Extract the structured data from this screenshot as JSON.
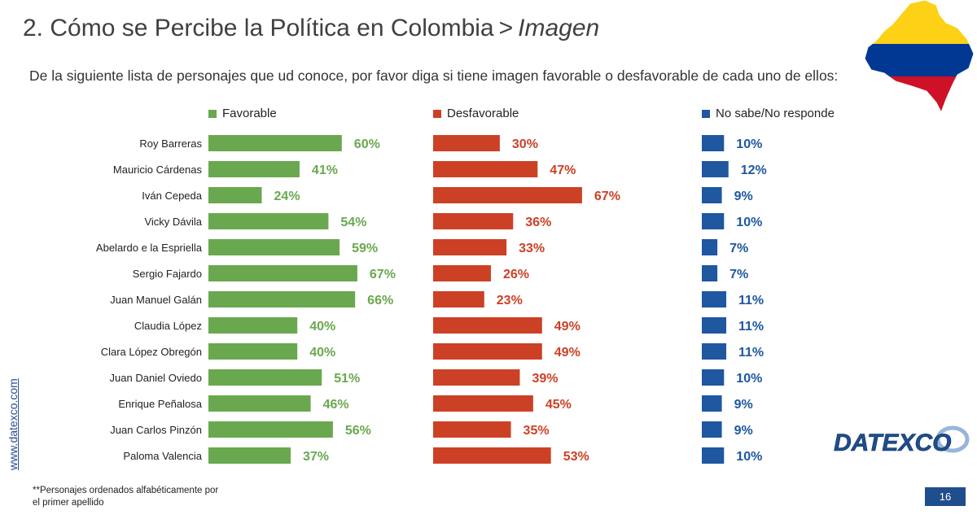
{
  "header": {
    "title_main": "2. Cómo se Percibe la Política en Colombia",
    "title_sep": ">",
    "title_crumb": "Imagen",
    "subtitle": "De la siguiente lista de personajes que ud conoce, por favor diga si tiene imagen favorable o desfavorable de cada uno de ellos:"
  },
  "footer": {
    "website": "www.datexco.com",
    "footnote": "**Personajes ordenados alfabéticamente por el primer apellido",
    "page_number": "16",
    "logo_text": "DATEXCO"
  },
  "colors": {
    "favorable": "#6aa84f",
    "desfavorable": "#cc4125",
    "ns_nr": "#1f57a0",
    "logo_blue": "#1f4e8c"
  },
  "chart_data": {
    "type": "bar",
    "orientation": "horizontal",
    "categories": [
      "Roy Barreras",
      "Mauricio Cárdenas",
      "Iván Cepeda",
      "Vicky Dávila",
      "Abelardo e la Espriella",
      "Sergio Fajardo",
      "Juan Manuel Galán",
      "Claudia López",
      "Clara López Obregón",
      "Juan Daniel Oviedo",
      "Enrique Peñalosa",
      "Juan Carlos Pinzón",
      "Paloma Valencia"
    ],
    "series": [
      {
        "name": "Favorable",
        "values": [
          60,
          41,
          24,
          54,
          59,
          67,
          66,
          40,
          40,
          51,
          46,
          56,
          37
        ]
      },
      {
        "name": "Desfavorable",
        "values": [
          30,
          47,
          67,
          36,
          33,
          26,
          23,
          49,
          49,
          39,
          45,
          35,
          53
        ]
      },
      {
        "name": "No sabe/No responde",
        "values": [
          10,
          12,
          9,
          10,
          7,
          7,
          11,
          11,
          11,
          10,
          9,
          9,
          10
        ]
      }
    ],
    "value_suffix": "%",
    "legend_position": "top",
    "grid": false
  }
}
